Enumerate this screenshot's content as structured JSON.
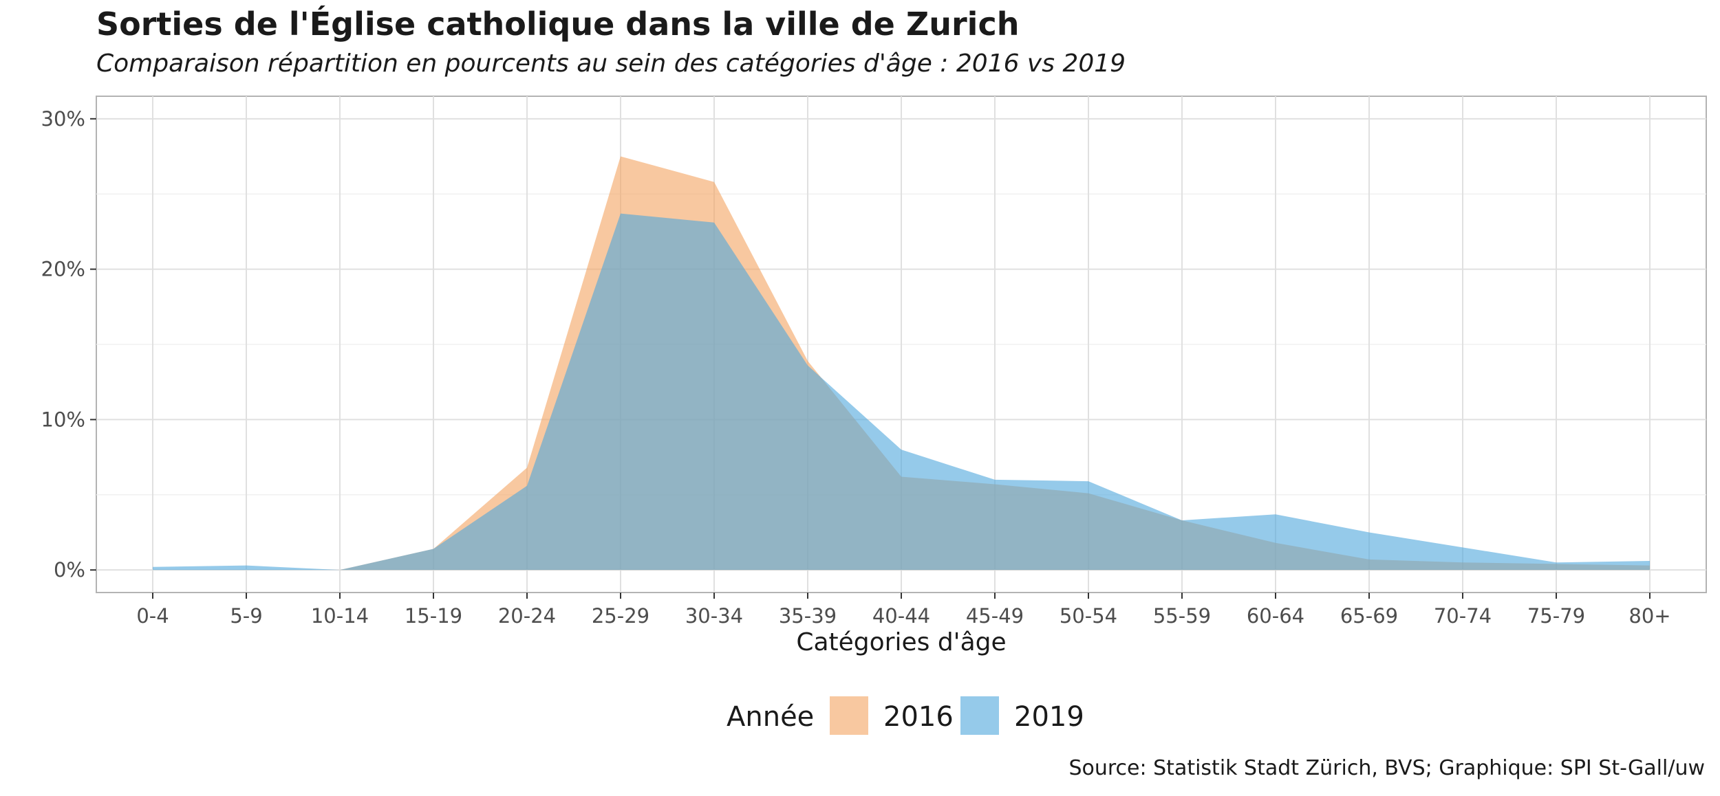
{
  "chart_data": {
    "type": "area",
    "title": "Sorties de l'Église catholique dans la ville de Zurich",
    "subtitle": "Comparaison répartition en pourcents au sein des catégories d'âge : 2016 vs 2019",
    "xlabel": "Catégories d'âge",
    "ylabel": "",
    "categories": [
      "0-4",
      "5-9",
      "10-14",
      "15-19",
      "20-24",
      "25-29",
      "30-34",
      "35-39",
      "40-44",
      "45-49",
      "50-54",
      "55-59",
      "60-64",
      "65-69",
      "70-74",
      "75-79",
      "80+"
    ],
    "yticks": [
      0,
      10,
      20,
      30
    ],
    "ytick_labels": [
      "0%",
      "10%",
      "20%",
      "30%"
    ],
    "ylim": [
      -1.5,
      31.5
    ],
    "grid": true,
    "legend": {
      "title": "Année",
      "position": "bottom"
    },
    "series": [
      {
        "name": "2016",
        "color": "#F4A460",
        "opacity": 0.6,
        "values": [
          0.0,
          0.0,
          0.0,
          1.4,
          6.8,
          27.5,
          25.8,
          13.9,
          6.2,
          5.7,
          5.1,
          3.3,
          1.8,
          0.7,
          0.5,
          0.4,
          0.3
        ]
      },
      {
        "name": "2019",
        "color": "#4EA6DC",
        "opacity": 0.6,
        "values": [
          0.2,
          0.3,
          0.0,
          1.4,
          5.6,
          23.7,
          23.1,
          13.6,
          8.0,
          6.0,
          5.9,
          3.3,
          3.7,
          2.5,
          1.5,
          0.5,
          0.6
        ]
      }
    ]
  },
  "source": "Source: Statistik Stadt Zürich, BVS; Graphique: SPI St-Gall/uw"
}
